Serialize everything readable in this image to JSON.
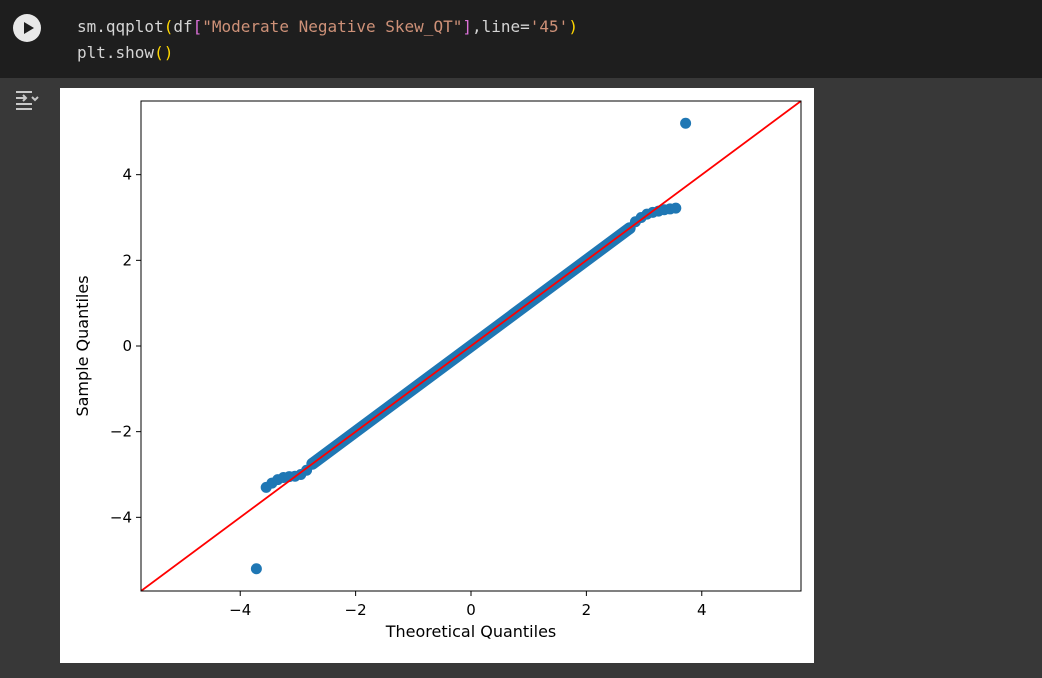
{
  "cell": {
    "code_lines": [
      [
        {
          "t": "sm.qqplot",
          "c": "plain"
        },
        {
          "t": "(",
          "c": "paren1"
        },
        {
          "t": "df",
          "c": "plain"
        },
        {
          "t": "[",
          "c": "bracket"
        },
        {
          "t": "\"Moderate Negative Skew_QT\"",
          "c": "str"
        },
        {
          "t": "]",
          "c": "bracket"
        },
        {
          "t": ",line=",
          "c": "plain"
        },
        {
          "t": "'45'",
          "c": "str"
        },
        {
          "t": ")",
          "c": "paren1"
        }
      ],
      [
        {
          "t": "plt.show",
          "c": "plain"
        },
        {
          "t": "()",
          "c": "paren1"
        }
      ]
    ],
    "run_icon": "play-icon",
    "output_toggle_icon": "output-toggle-icon"
  },
  "colors": {
    "cell_bg": "#1e1e1e",
    "page_bg": "#383838",
    "points": "#1f77b4",
    "reference_line": "#ff0000"
  },
  "chart_data": {
    "type": "scatter",
    "title": "",
    "xlabel": "Theoretical Quantiles",
    "ylabel": "Sample Quantiles",
    "xlim": [
      -5.72,
      5.72
    ],
    "ylim": [
      -5.72,
      5.72
    ],
    "xticks": [
      -4,
      -2,
      0,
      2,
      4
    ],
    "yticks": [
      -4,
      -2,
      0,
      2,
      4
    ],
    "tick_labels_x": [
      "−4",
      "−2",
      "0",
      "2",
      "4"
    ],
    "tick_labels_y": [
      "−4",
      "−2",
      "0",
      "2",
      "4"
    ],
    "reference_line": "45",
    "grid": false,
    "series": [
      {
        "points": [
          [
            -3.72,
            -5.2
          ],
          [
            -3.55,
            -3.3
          ],
          [
            -3.45,
            -3.2
          ],
          [
            -3.35,
            -3.12
          ],
          [
            -3.25,
            -3.07
          ],
          [
            -3.15,
            -3.05
          ],
          [
            -3.05,
            -3.04
          ],
          [
            -2.95,
            -3.0
          ],
          [
            -2.85,
            -2.9
          ],
          [
            -2.75,
            -2.74
          ],
          [
            2.75,
            2.74
          ],
          [
            2.85,
            2.9
          ],
          [
            2.95,
            3.0
          ],
          [
            3.05,
            3.08
          ],
          [
            3.15,
            3.12
          ],
          [
            3.25,
            3.15
          ],
          [
            3.35,
            3.18
          ],
          [
            3.45,
            3.2
          ],
          [
            3.55,
            3.22
          ],
          [
            3.72,
            5.2
          ]
        ],
        "line_range": [
          -2.75,
          2.75
        ]
      }
    ]
  }
}
